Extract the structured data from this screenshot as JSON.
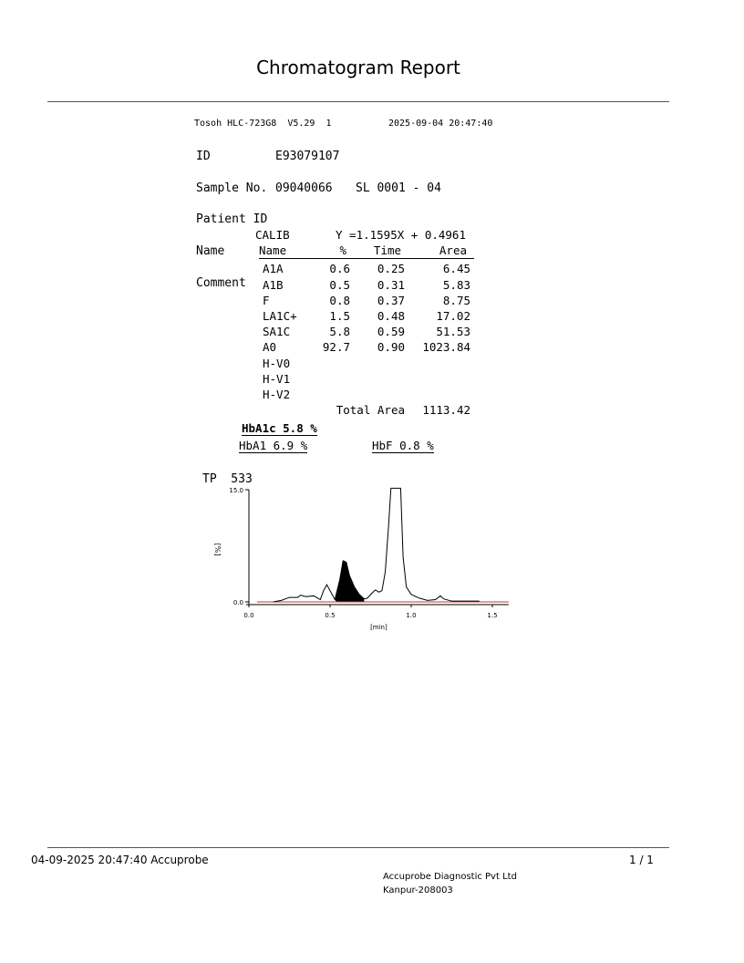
{
  "report": {
    "title": "Chromatogram Report"
  },
  "instrument": {
    "header": "Tosoh HLC-723G8  V5.29  1",
    "datetime": "2025-09-04 20:47:40"
  },
  "info": {
    "id_label": "ID",
    "id": "E93079107",
    "sample_label": "Sample No.",
    "sample": "09040066",
    "sl": "SL 0001 - 04",
    "patient_label": "Patient ID",
    "name_label": "Name",
    "comment_label": "Comment"
  },
  "calib": {
    "label": "CALIB",
    "equation": "Y =1.1595X + 0.4961"
  },
  "table": {
    "headers": [
      "Name",
      "%",
      "Time",
      "Area"
    ],
    "rows": [
      [
        "A1A",
        "0.6",
        "0.25",
        "6.45"
      ],
      [
        "A1B",
        "0.5",
        "0.31",
        "5.83"
      ],
      [
        "F",
        "0.8",
        "0.37",
        "8.75"
      ],
      [
        "LA1C+",
        "1.5",
        "0.48",
        "17.02"
      ],
      [
        "SA1C",
        "5.8",
        "0.59",
        "51.53"
      ],
      [
        "A0",
        "92.7",
        "0.90",
        "1023.84"
      ],
      [
        "H-V0",
        "",
        "",
        ""
      ],
      [
        "H-V1",
        "",
        "",
        ""
      ],
      [
        "H-V2",
        "",
        "",
        ""
      ]
    ],
    "total_label": "Total Area",
    "total": "1113.42"
  },
  "results": {
    "hba1c": "HbA1c 5.8 %",
    "hba1": "HbA1 6.9 %",
    "hbf": "HbF 0.8 %"
  },
  "chart_data": {
    "type": "line",
    "label": "TP  533",
    "ylabel": "[%]",
    "xlabel": "[min]",
    "xlim": [
      0,
      1.6
    ],
    "ylim": [
      0,
      15
    ],
    "yticks": [
      "15.0",
      "0.0"
    ],
    "xticks": [
      "0.0",
      "0.5",
      "1.0",
      "1.5"
    ],
    "baseline_color": "#c0392b",
    "filled_peak": {
      "name": "SA1C",
      "range": [
        0.54,
        0.71
      ]
    },
    "trace": [
      [
        0.15,
        0
      ],
      [
        0.2,
        0.2
      ],
      [
        0.25,
        0.6
      ],
      [
        0.3,
        0.6
      ],
      [
        0.32,
        0.9
      ],
      [
        0.35,
        0.7
      ],
      [
        0.4,
        0.8
      ],
      [
        0.44,
        0.3
      ],
      [
        0.46,
        1.5
      ],
      [
        0.48,
        2.3
      ],
      [
        0.5,
        1.5
      ],
      [
        0.53,
        0.3
      ],
      [
        0.56,
        3
      ],
      [
        0.58,
        5.5
      ],
      [
        0.6,
        5.3
      ],
      [
        0.62,
        3.5
      ],
      [
        0.65,
        2
      ],
      [
        0.68,
        1
      ],
      [
        0.71,
        0.4
      ],
      [
        0.73,
        0.5
      ],
      [
        0.76,
        1.2
      ],
      [
        0.78,
        1.6
      ],
      [
        0.8,
        1.3
      ],
      [
        0.82,
        1.5
      ],
      [
        0.84,
        4
      ],
      [
        0.86,
        10
      ],
      [
        0.875,
        15.5
      ],
      [
        0.935,
        15.5
      ],
      [
        0.95,
        6
      ],
      [
        0.97,
        2
      ],
      [
        1.0,
        1
      ],
      [
        1.05,
        0.5
      ],
      [
        1.1,
        0.2
      ],
      [
        1.15,
        0.3
      ],
      [
        1.18,
        0.8
      ],
      [
        1.2,
        0.4
      ],
      [
        1.25,
        0.1
      ],
      [
        1.42,
        0.1
      ]
    ]
  },
  "footer": {
    "left": "04-09-2025 20:47:40  Accuprobe",
    "page": "1 / 1",
    "company": "Accuprobe Diagnostic Pvt Ltd",
    "address": "Kanpur-208003"
  }
}
